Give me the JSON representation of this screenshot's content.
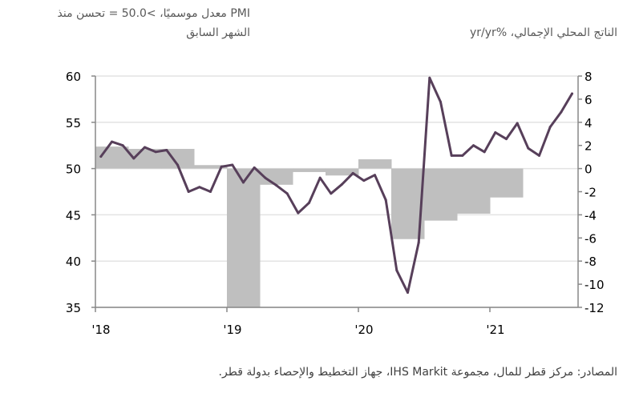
{
  "chart_data": {
    "type": "bar+line",
    "left_title_line1": "PMI معدل موسميًا، >50.0 = تحسن منذ",
    "left_title_line2": "الشهر السابق",
    "right_title": "الناتج المحلي الإجمالي، %yr/yr",
    "source": "المصادر: مركز قطر للمال، مجموعة IHS Markit، جهاز التخطيط والإحصاء بدولة قطر.",
    "left_axis": {
      "label": "PMI",
      "range": [
        35,
        60
      ],
      "ticks": [
        "60",
        "55",
        "50",
        "45",
        "40",
        "35"
      ]
    },
    "right_axis": {
      "label": "GDP yr/yr %",
      "range": [
        -12,
        8
      ],
      "ticks": [
        "8",
        "6",
        "4",
        "2",
        "0",
        "-2",
        "-4",
        "-6",
        "-8",
        "-10",
        "-12"
      ]
    },
    "x_ticks": [
      "'18",
      "'19",
      "'20",
      "'21"
    ],
    "grid": true,
    "series": [
      {
        "name": "GDP yr/yr % (quarterly)",
        "type": "bar",
        "axis": "right",
        "color": "#bfbfbf",
        "x": [
          "2018Q1",
          "2018Q2",
          "2018Q3",
          "2018Q4",
          "2019Q1",
          "2019Q2",
          "2019Q3",
          "2019Q4",
          "2020Q1",
          "2020Q2",
          "2020Q3",
          "2020Q4",
          "2021Q1"
        ],
        "values": [
          1.9,
          1.7,
          1.7,
          0.3,
          -12.0,
          -1.4,
          -0.3,
          -0.6,
          0.8,
          -6.1,
          -4.5,
          -3.9,
          -2.5
        ]
      },
      {
        "name": "PMI (monthly)",
        "type": "line",
        "axis": "left",
        "color": "#573f5a",
        "x_start": "2018-01",
        "x_end": "2021-08",
        "values": [
          51.3,
          52.9,
          52.5,
          51.1,
          52.3,
          51.8,
          52.0,
          50.4,
          47.5,
          48.0,
          47.5,
          50.2,
          50.4,
          48.5,
          50.1,
          49.0,
          48.2,
          47.3,
          45.2,
          46.3,
          49.0,
          47.3,
          48.3,
          49.5,
          48.7,
          49.3,
          46.6,
          39.0,
          36.6,
          42.0,
          59.8,
          57.2,
          51.4,
          51.4,
          52.5,
          51.8,
          53.9,
          53.2,
          54.9,
          52.2,
          51.4,
          54.5,
          56.1,
          58.1
        ]
      }
    ]
  }
}
